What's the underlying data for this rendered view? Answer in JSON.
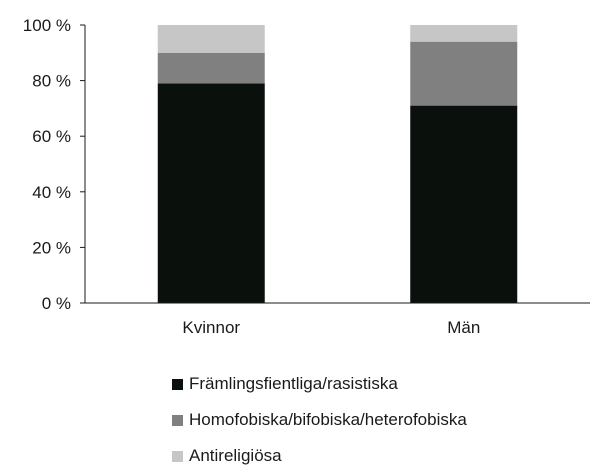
{
  "chart_data": {
    "type": "bar",
    "stacked": true,
    "categories": [
      "Kvinnor",
      "Män"
    ],
    "series": [
      {
        "name": "Främlingsfientliga/rasistiska",
        "values": [
          79,
          71
        ],
        "color": "#0a100c"
      },
      {
        "name": "Homofobiska/bifobiska/heterofobiska",
        "values": [
          11,
          23
        ],
        "color": "#808080"
      },
      {
        "name": "Antireligiösa",
        "values": [
          10,
          6
        ],
        "color": "#c6c6c6"
      }
    ],
    "y_ticks": [
      "0 %",
      "20 %",
      "40 %",
      "60 %",
      "80 %",
      "100 %"
    ],
    "ylim": [
      0,
      100
    ],
    "grid": false,
    "legend_position": "bottom"
  }
}
